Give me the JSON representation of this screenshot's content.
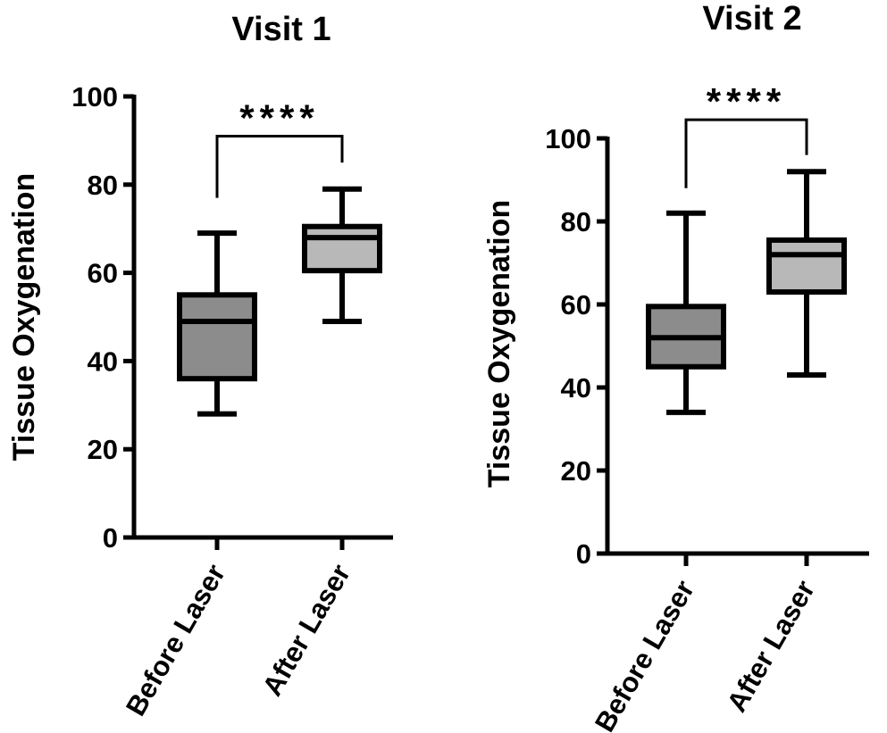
{
  "chart_data": [
    {
      "type": "box",
      "title": "Visit 1",
      "ylabel": "Tissue  Oxygenation",
      "xlabel": "",
      "ylim": [
        0,
        100
      ],
      "yticks": [
        0,
        20,
        40,
        60,
        80,
        100
      ],
      "categories": [
        "Before Laser",
        "After Laser"
      ],
      "boxes": [
        {
          "category": "Before Laser",
          "min": 28,
          "q1": 36,
          "median": 49,
          "q3": 55,
          "max": 69,
          "fill": "#8c8c8c"
        },
        {
          "category": "After Laser",
          "min": 49,
          "q1": 60.5,
          "median": 68,
          "q3": 70.5,
          "max": 79,
          "fill": "#b8b8b8"
        }
      ],
      "significance": {
        "label": "****",
        "from": "Before Laser",
        "to": "After Laser",
        "bracket_y": 91,
        "left_drop": 77,
        "right_drop": 85
      }
    },
    {
      "type": "box",
      "title": "Visit 2",
      "ylabel": "Tissue  Oxygenation",
      "xlabel": "",
      "ylim": [
        0,
        100
      ],
      "yticks": [
        0,
        20,
        40,
        60,
        80,
        100
      ],
      "categories": [
        "Before Laser",
        "After Laser"
      ],
      "boxes": [
        {
          "category": "Before Laser",
          "min": 34,
          "q1": 45,
          "median": 52,
          "q3": 59.5,
          "max": 82,
          "fill": "#8c8c8c"
        },
        {
          "category": "After Laser",
          "min": 43,
          "q1": 63,
          "median": 72,
          "q3": 75.5,
          "max": 92,
          "fill": "#b8b8b8"
        }
      ],
      "significance": {
        "label": "****",
        "from": "Before Laser",
        "to": "After Laser",
        "bracket_y": 104.5,
        "left_drop": 88,
        "right_drop": 96
      }
    }
  ]
}
